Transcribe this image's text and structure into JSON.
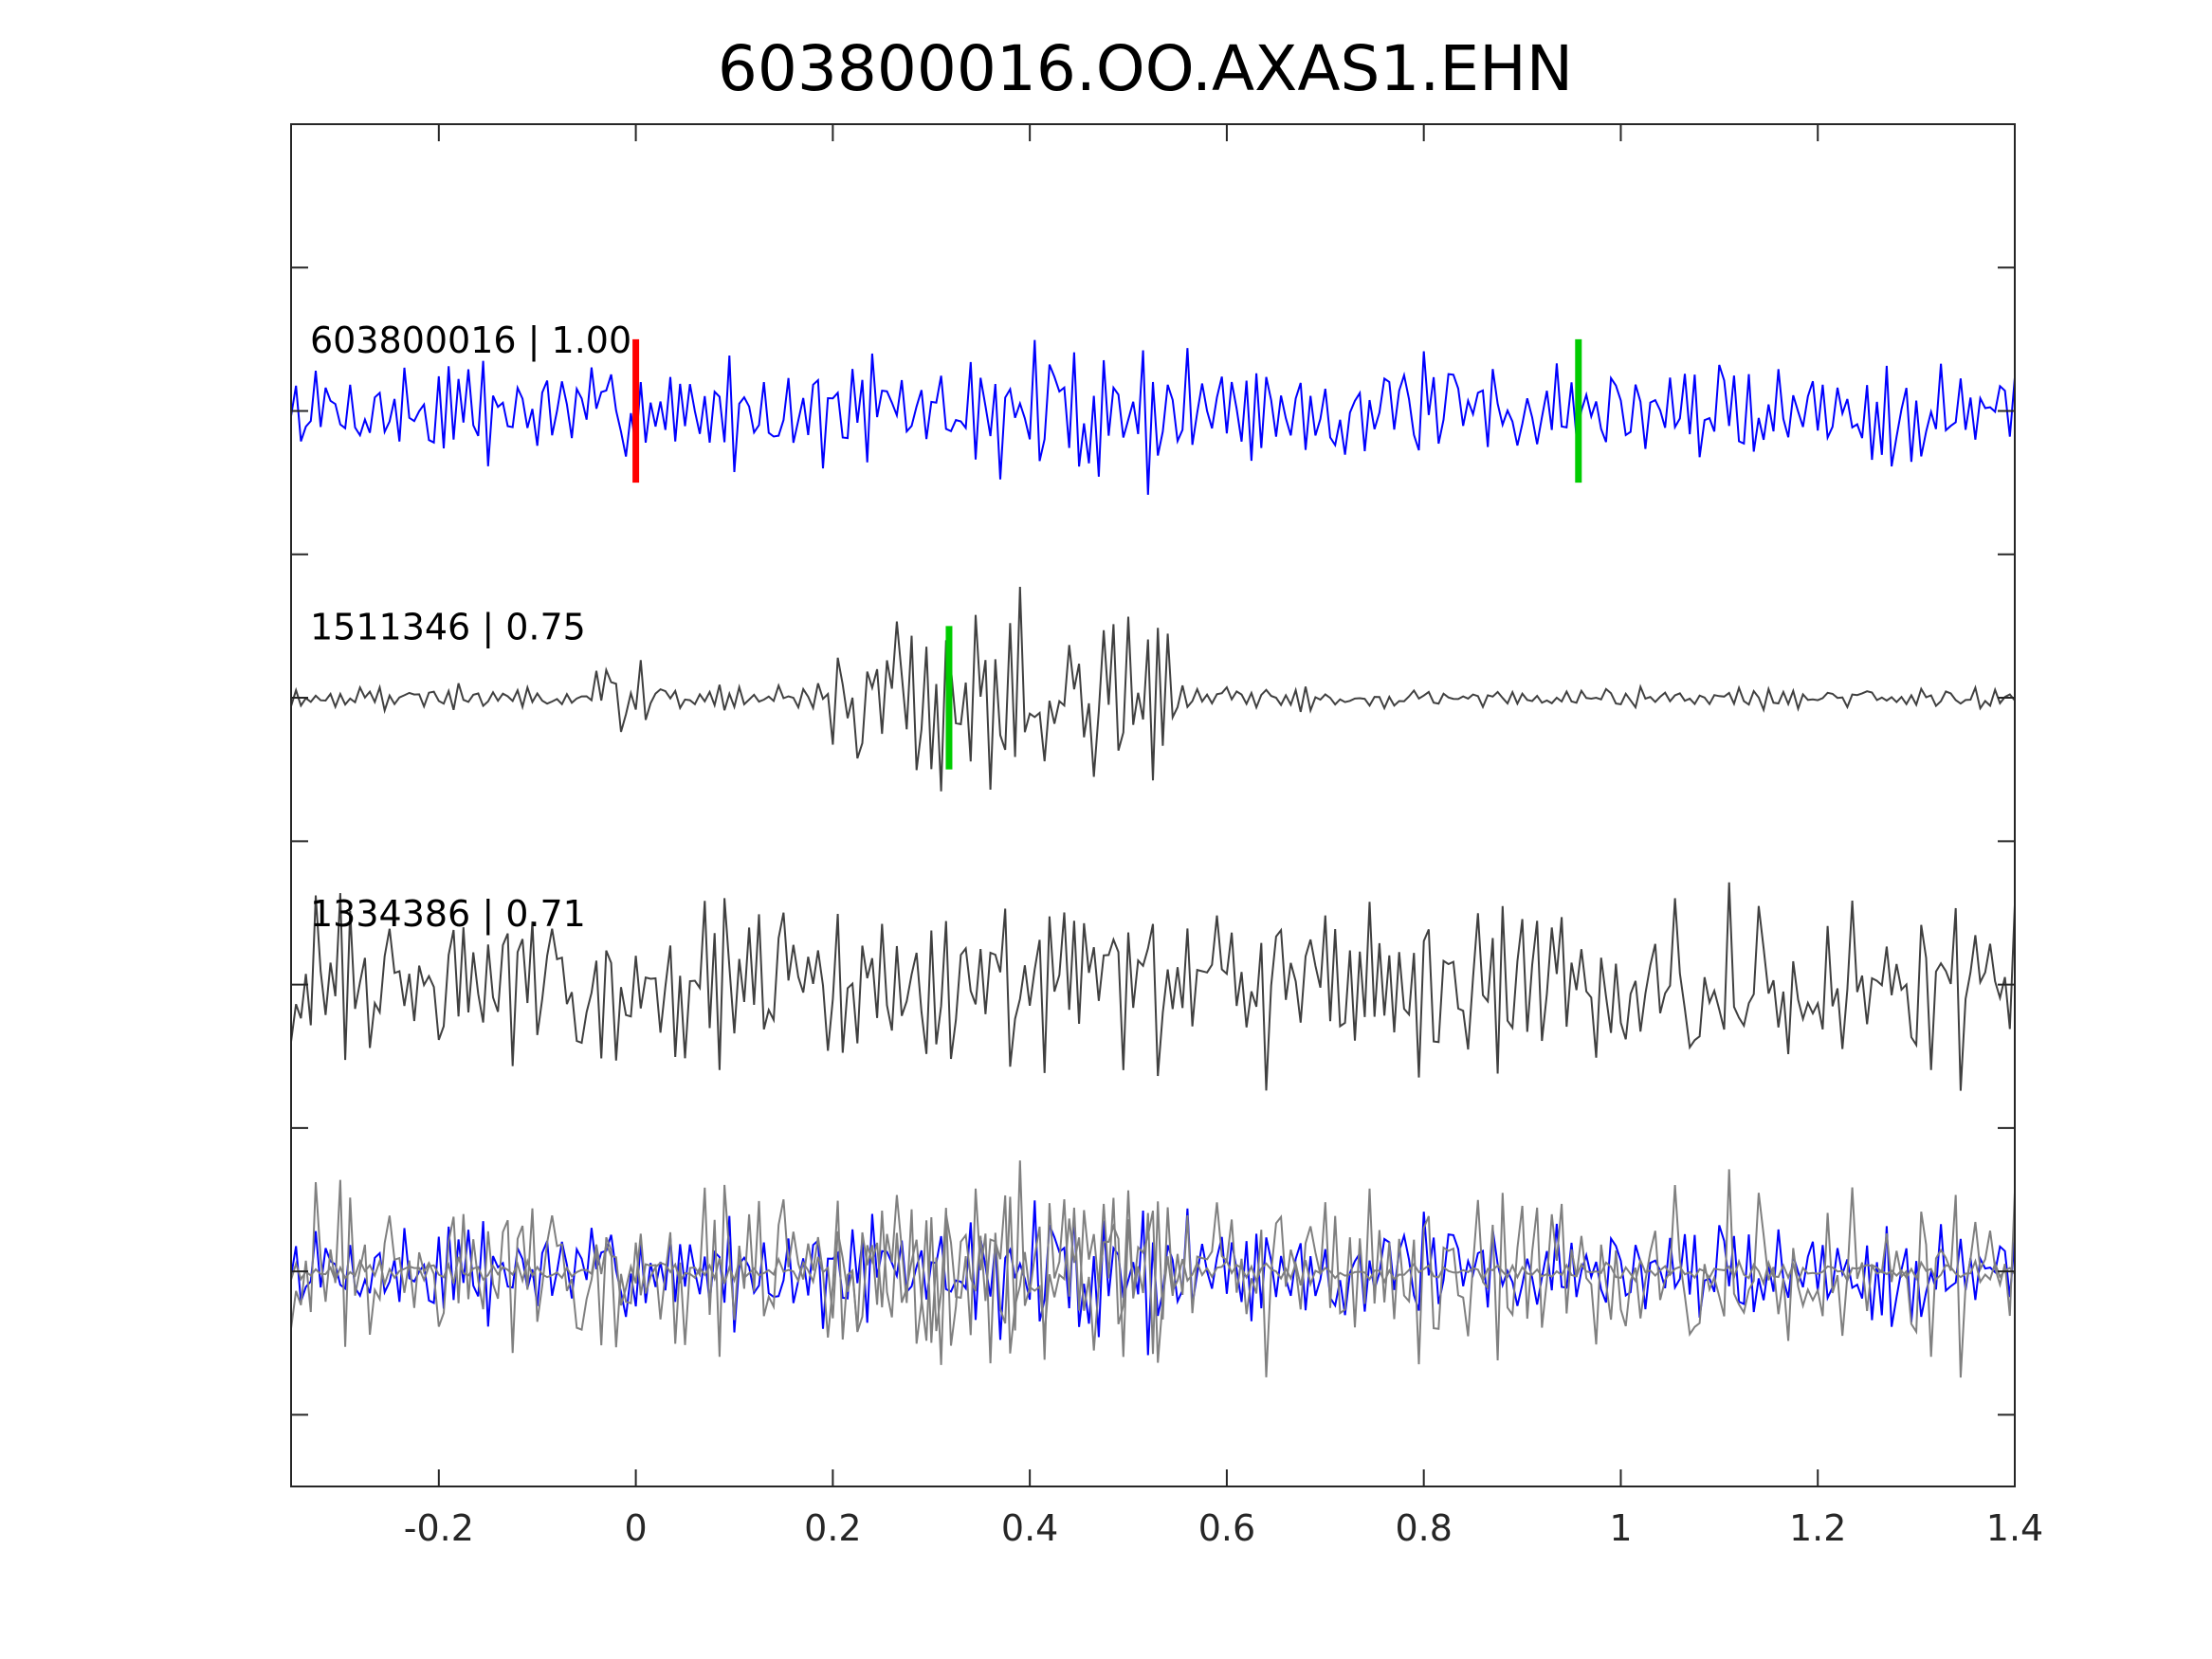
{
  "chart_data": {
    "type": "line",
    "title": "603800016.OO.AXAS1.EHN",
    "xlabel": "",
    "ylabel": "",
    "xlim": [
      -0.35,
      1.4
    ],
    "x_ticks": [
      -0.2,
      0,
      0.2,
      0.4,
      0.6,
      0.8,
      1,
      1.2,
      1.4
    ],
    "x_tick_labels": [
      "-0.2",
      "0",
      "0.2",
      "0.4",
      "0.6",
      "0.8",
      "1",
      "1.2",
      "1.4"
    ],
    "y_ticks_shown": true,
    "y_tick_labels": [],
    "grid": false,
    "sample_interval": 0.005,
    "series": [
      {
        "name": "603800016 | 1.00",
        "label": "603800016 | 1.00",
        "color": "#0000ff",
        "offset": 0,
        "seed": 7,
        "amplitude": 0.35,
        "emphasis": [
          {
            "x0": 0.37,
            "x1": 0.6,
            "gain": 1.4
          }
        ],
        "picks": [
          {
            "x": 0.0,
            "color": "#ff0000"
          },
          {
            "x": 0.957,
            "color": "#00cc00"
          }
        ]
      },
      {
        "name": "1511346 | 0.75",
        "label": "1511346 | 0.75",
        "color": "#404040",
        "offset": -2,
        "seed": 19,
        "amplitude": 0.08,
        "emphasis": [
          {
            "x0": -0.05,
            "x1": 0.02,
            "gain": 3.5
          },
          {
            "x0": 0.2,
            "x1": 0.55,
            "gain": 8.0
          }
        ],
        "picks": [
          {
            "x": 0.318,
            "color": "#00cc00"
          }
        ]
      },
      {
        "name": "1334386 | 0.71",
        "label": "1334386 | 0.71",
        "color": "#404040",
        "offset": -4,
        "seed": 31,
        "amplitude": 0.6,
        "emphasis": [],
        "picks": []
      },
      {
        "name": "",
        "label": "",
        "color": "#0000ff",
        "offset": -6,
        "seed": 7,
        "amplitude": 0.35,
        "emphasis": [
          {
            "x0": 0.37,
            "x1": 0.6,
            "gain": 1.4
          }
        ],
        "picks": []
      },
      {
        "name": "",
        "label": "",
        "color": "#808080",
        "offset": -6,
        "seed": 19,
        "amplitude": 0.08,
        "emphasis": [
          {
            "x0": -0.05,
            "x1": 0.02,
            "gain": 3.5
          },
          {
            "x0": 0.2,
            "x1": 0.55,
            "gain": 8.0
          }
        ],
        "picks": []
      },
      {
        "name": "",
        "label": "",
        "color": "#808080",
        "offset": -6,
        "seed": 31,
        "amplitude": 0.6,
        "emphasis": [],
        "picks": []
      }
    ],
    "ylim": [
      -7.5,
      2
    ]
  }
}
